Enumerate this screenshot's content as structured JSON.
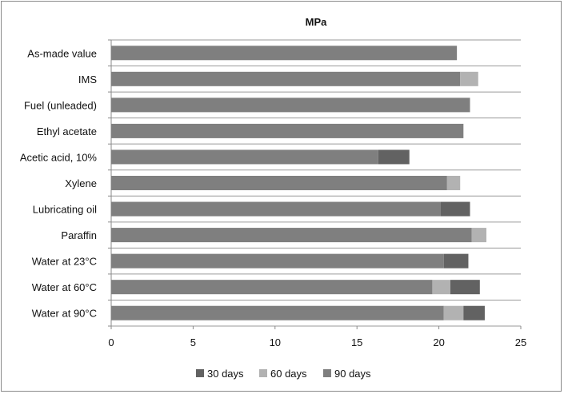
{
  "chart_data": {
    "type": "bar",
    "orientation": "horizontal",
    "stacked": true,
    "title": "MPa",
    "categories": [
      "As-made value",
      "IMS",
      "Fuel (unleaded)",
      "Ethyl acetate",
      "Acetic acid, 10%",
      "Xylene",
      "Lubricating oil",
      "Paraffin",
      "Water at 23°C",
      "Water at 60°C",
      "Water at 90°C"
    ],
    "series": [
      {
        "name": "90 days",
        "color": "#7f7f7f",
        "values": [
          21.1,
          21.3,
          21.9,
          21.5,
          16.3,
          20.5,
          20.1,
          22.0,
          20.3,
          19.6,
          20.3
        ]
      },
      {
        "name": "60 days",
        "color": "#b2b2b2",
        "values": [
          0,
          1.1,
          0,
          0,
          0,
          0.8,
          0,
          0.9,
          0,
          1.1,
          1.2
        ]
      },
      {
        "name": "30 days",
        "color": "#626262",
        "values": [
          0,
          0,
          0,
          0,
          1.9,
          0,
          1.8,
          0,
          1.5,
          1.8,
          1.3
        ]
      }
    ],
    "legend_order": [
      "30 days",
      "60 days",
      "90 days"
    ],
    "xlim": [
      0,
      25
    ],
    "xticks": [
      "0",
      "5",
      "10",
      "15",
      "20",
      "25"
    ],
    "grid": "horizontal separators",
    "legend_position": "bottom"
  }
}
